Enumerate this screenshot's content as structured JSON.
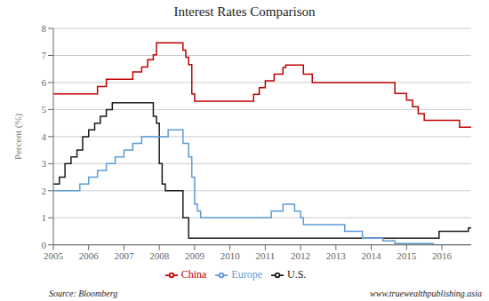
{
  "chart_data": {
    "type": "step",
    "title": "Interest Rates Comparison",
    "ylabel": "Percent (%)",
    "annotations": [
      "Source: Bloomberg",
      "www.truewealthpublishing.asia"
    ],
    "xlim": [
      2005.0,
      2016.83
    ],
    "xticks": [
      2005,
      2006,
      2007,
      2008,
      2009,
      2010,
      2011,
      2012,
      2013,
      2014,
      2015,
      2016
    ],
    "ylim": [
      0,
      8
    ],
    "yticks": [
      0,
      1,
      2,
      3,
      4,
      5,
      6,
      7,
      8
    ],
    "grid": "y",
    "legend": "bottom",
    "series": [
      {
        "name": "U.S.",
        "color": "#1a1a1a",
        "x": [
          2005.0,
          2005.17,
          2005.33,
          2005.5,
          2005.67,
          2005.83,
          2006.0,
          2006.17,
          2006.33,
          2006.5,
          2006.67,
          2007.67,
          2007.83,
          2007.92,
          2008.0,
          2008.08,
          2008.17,
          2008.25,
          2008.5,
          2008.67,
          2008.83,
          2015.83,
          2015.92,
          2016.58,
          2016.75,
          2016.83
        ],
        "values": [
          2.25,
          2.5,
          3.0,
          3.25,
          3.5,
          4.0,
          4.25,
          4.5,
          4.75,
          5.0,
          5.25,
          5.25,
          4.75,
          4.5,
          3.0,
          2.25,
          2.0,
          2.0,
          2.0,
          1.0,
          0.25,
          0.25,
          0.5,
          0.5,
          0.625,
          0.625
        ]
      },
      {
        "name": "Europe",
        "color": "#5b9bd5",
        "x": [
          2005.0,
          2005.75,
          2006.0,
          2006.25,
          2006.5,
          2006.75,
          2007.0,
          2007.25,
          2007.5,
          2008.0,
          2008.25,
          2008.5,
          2008.67,
          2008.83,
          2008.92,
          2009.0,
          2009.08,
          2009.17,
          2011.0,
          2011.17,
          2011.5,
          2011.67,
          2011.83,
          2012.0,
          2012.08,
          2013.0,
          2013.25,
          2013.75,
          2014.0,
          2014.33,
          2014.67,
          2015.58,
          2015.75,
          2016.83
        ],
        "values": [
          2.0,
          2.25,
          2.5,
          2.75,
          3.0,
          3.25,
          3.5,
          3.75,
          4.0,
          4.0,
          4.25,
          4.25,
          3.75,
          3.25,
          2.5,
          1.5,
          1.25,
          1.0,
          1.0,
          1.25,
          1.5,
          1.5,
          1.25,
          1.0,
          0.75,
          0.75,
          0.5,
          0.25,
          0.25,
          0.15,
          0.05,
          0.05,
          0.0,
          0.0
        ]
      },
      {
        "name": "China",
        "color": "#c00000",
        "x": [
          2005.0,
          2006.25,
          2006.5,
          2007.25,
          2007.5,
          2007.67,
          2007.83,
          2007.92,
          2008.5,
          2008.67,
          2008.75,
          2008.83,
          2008.92,
          2009.0,
          2010.5,
          2010.67,
          2010.83,
          2011.0,
          2011.25,
          2011.5,
          2011.58,
          2012.0,
          2012.08,
          2012.33,
          2014.5,
          2014.67,
          2015.0,
          2015.17,
          2015.33,
          2015.5,
          2016.5,
          2016.83
        ],
        "values": [
          5.58,
          5.85,
          6.12,
          6.39,
          6.57,
          6.84,
          7.02,
          7.47,
          7.47,
          7.2,
          6.93,
          6.66,
          5.58,
          5.31,
          5.31,
          5.56,
          5.81,
          6.06,
          6.31,
          6.56,
          6.65,
          6.65,
          6.31,
          6.0,
          6.0,
          5.6,
          5.35,
          5.1,
          4.85,
          4.6,
          4.35,
          4.35
        ]
      }
    ]
  }
}
